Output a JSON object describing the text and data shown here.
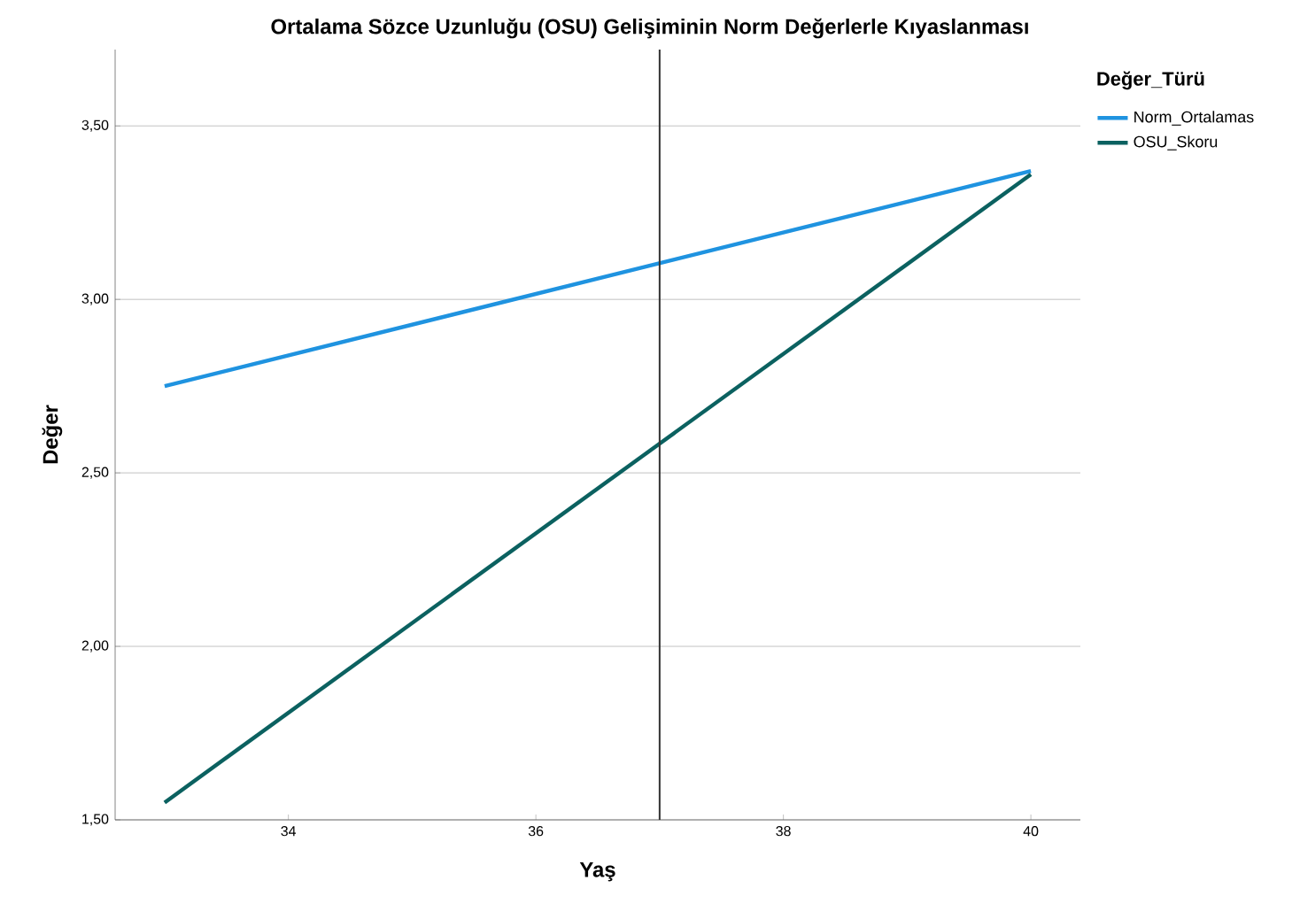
{
  "chart_data": {
    "type": "line",
    "title": "Ortalama Sözce Uzunluğu (OSU) Gelişiminin Norm Değerlerle Kıyaslanması",
    "xlabel": "Yaş",
    "ylabel": "Değer",
    "legend_title": "Değer_Türü",
    "x": [
      33,
      40
    ],
    "series": [
      {
        "name": "Norm_Ortalamas",
        "color": "#1f93e0",
        "values": [
          2.75,
          3.37
        ]
      },
      {
        "name": "OSU_Skoru",
        "color": "#0b6160",
        "values": [
          1.55,
          3.36
        ]
      }
    ],
    "xlim": [
      32.6,
      40.4
    ],
    "ylim": [
      1.5,
      3.72
    ],
    "xticks": [
      34,
      36,
      38,
      40
    ],
    "yticks": [
      {
        "value": 1.5,
        "label": "1,50"
      },
      {
        "value": 2.0,
        "label": "2,00"
      },
      {
        "value": 2.5,
        "label": "2,50"
      },
      {
        "value": 3.0,
        "label": "3,00"
      },
      {
        "value": 3.5,
        "label": "3,50"
      }
    ],
    "grid": "y",
    "legend": "top right",
    "marker": "none",
    "line_style": "solid",
    "ref_lines": [
      {
        "axis": "x",
        "value": 37,
        "color": "#333333"
      }
    ]
  }
}
